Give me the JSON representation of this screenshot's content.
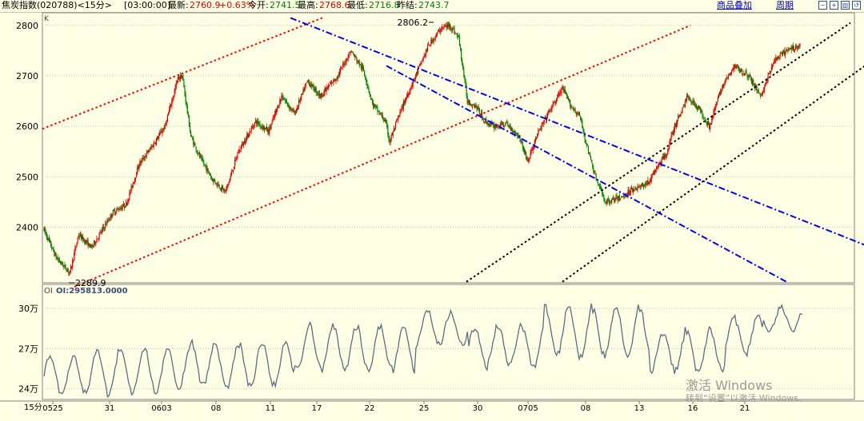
{
  "header": {
    "instrument": "焦炭指数(020788)<15分>",
    "time": "[03:00:00]",
    "last_label": "最新:",
    "last_value": "2760.9",
    "change_value": "+0.63%",
    "open_label": "今开:",
    "open_value": "2741.5",
    "high_label": "最高:",
    "high_value": "2768.6",
    "low_label": "最低:",
    "low_value": "2716.8",
    "prev_label": "昨结:",
    "prev_value": "2743.7",
    "overlay_link": "商品叠加",
    "period_link": "周期",
    "tool_icons": [
      "zoom-out-icon",
      "zoom-in-icon",
      "column-view-icon",
      "restore-icon"
    ]
  },
  "colors": {
    "background": "#FFFFE6",
    "up_candle": "#E00000",
    "down_candle": "#008000",
    "grid": "#C8C8B4",
    "red_channel": "#FF0000",
    "blue_channel": "#0000FF",
    "black_channel": "#000000",
    "oi_line": "#5A6E82"
  },
  "chart_data": [
    {
      "type": "candlestick",
      "panel_label": "K",
      "period": "15分",
      "y_ticks": [
        2400,
        2500,
        2600,
        2700,
        2800
      ],
      "ylim": [
        2290,
        2825
      ],
      "x_tick_labels": [
        "0525",
        "31",
        "0603",
        "08",
        "11",
        "17",
        "22",
        "25",
        "30",
        "0705",
        "08",
        "13",
        "16",
        "21"
      ],
      "annotations": [
        {
          "text": "2806.2",
          "meaning": "high",
          "value": 2806.2
        },
        {
          "text": "2289.9",
          "meaning": "low",
          "value": 2289.9
        }
      ],
      "bar_count": 700,
      "anchors": [
        [
          0,
          2395
        ],
        [
          14,
          2340
        ],
        [
          30,
          2310
        ],
        [
          40,
          2385
        ],
        [
          55,
          2360
        ],
        [
          80,
          2430
        ],
        [
          95,
          2445
        ],
        [
          110,
          2525
        ],
        [
          125,
          2560
        ],
        [
          140,
          2600
        ],
        [
          155,
          2695
        ],
        [
          160,
          2700
        ],
        [
          170,
          2580
        ],
        [
          180,
          2540
        ],
        [
          195,
          2495
        ],
        [
          210,
          2470
        ],
        [
          225,
          2550
        ],
        [
          245,
          2610
        ],
        [
          260,
          2590
        ],
        [
          275,
          2660
        ],
        [
          290,
          2625
        ],
        [
          305,
          2690
        ],
        [
          320,
          2660
        ],
        [
          340,
          2700
        ],
        [
          355,
          2750
        ],
        [
          370,
          2710
        ],
        [
          380,
          2645
        ],
        [
          395,
          2610
        ],
        [
          400,
          2570
        ],
        [
          415,
          2640
        ],
        [
          430,
          2700
        ],
        [
          445,
          2760
        ],
        [
          460,
          2795
        ],
        [
          470,
          2800
        ],
        [
          480,
          2775
        ],
        [
          490,
          2650
        ],
        [
          500,
          2640
        ],
        [
          510,
          2610
        ],
        [
          520,
          2600
        ],
        [
          535,
          2605
        ],
        [
          550,
          2580
        ],
        [
          560,
          2530
        ],
        [
          570,
          2580
        ],
        [
          585,
          2630
        ],
        [
          600,
          2675
        ],
        [
          610,
          2640
        ],
        [
          620,
          2620
        ],
        [
          630,
          2550
        ],
        [
          640,
          2490
        ],
        [
          650,
          2450
        ],
        [
          660,
          2455
        ],
        [
          670,
          2460
        ],
        [
          680,
          2475
        ],
        [
          690,
          2480
        ],
        [
          700,
          2490
        ]
      ],
      "close_last": 2760.9,
      "anchors_tail": [
        [
          710,
          2520
        ],
        [
          720,
          2545
        ],
        [
          730,
          2600
        ],
        [
          745,
          2660
        ],
        [
          760,
          2630
        ],
        [
          770,
          2600
        ],
        [
          785,
          2680
        ],
        [
          800,
          2720
        ],
        [
          815,
          2700
        ],
        [
          830,
          2660
        ],
        [
          845,
          2730
        ],
        [
          860,
          2750
        ],
        [
          875,
          2761
        ]
      ],
      "channels": [
        {
          "color": "red",
          "style": "dotted",
          "from": [
            0,
            2595
          ],
          "to": [
            350,
            2815
          ]
        },
        {
          "color": "red",
          "style": "dotted",
          "from": [
            40,
            2282
          ],
          "to": [
            810,
            2800
          ]
        },
        {
          "color": "blue",
          "style": "dash-dot",
          "from": [
            310,
            2815
          ],
          "to": [
            1068,
            2340
          ]
        },
        {
          "color": "blue",
          "style": "dash-dot",
          "from": [
            430,
            2720
          ],
          "to": [
            930,
            2292
          ]
        },
        {
          "color": "black",
          "style": "dotted",
          "from": [
            530,
            2292
          ],
          "to": [
            1010,
            2805
          ]
        },
        {
          "color": "black",
          "style": "dotted",
          "from": [
            650,
            2292
          ],
          "to": [
            1068,
            2765
          ]
        }
      ]
    },
    {
      "type": "line",
      "panel_label": "OI",
      "indicator_text": "OI:295813.0000",
      "y_ticks": [
        {
          "label": "24万",
          "value": 240000
        },
        {
          "label": "27万",
          "value": 270000
        },
        {
          "label": "30万",
          "value": 300000
        }
      ],
      "ylim": [
        232000,
        318000
      ],
      "last_value": 295813,
      "cycle_period_bars": 13,
      "segments": [
        {
          "x_from": 0,
          "x_to": 60,
          "base": 250000,
          "amplitude": 15000
        },
        {
          "x_from": 60,
          "x_to": 180,
          "base": 253000,
          "amplitude": 18000
        },
        {
          "x_from": 180,
          "x_to": 330,
          "base": 258000,
          "amplitude": 17000
        },
        {
          "x_from": 330,
          "x_to": 490,
          "base": 270000,
          "amplitude": 18000
        },
        {
          "x_from": 490,
          "x_to": 560,
          "base": 285000,
          "amplitude": 14000
        },
        {
          "x_from": 560,
          "x_to": 660,
          "base": 272000,
          "amplitude": 16000
        },
        {
          "x_from": 660,
          "x_to": 800,
          "base": 282000,
          "amplitude": 20000
        },
        {
          "x_from": 800,
          "x_to": 900,
          "base": 268000,
          "amplitude": 17000
        },
        {
          "x_from": 900,
          "x_to": 950,
          "base": 280000,
          "amplitude": 15000
        },
        {
          "x_from": 950,
          "x_to": 1000,
          "base": 292000,
          "amplitude": 9000
        }
      ]
    }
  ],
  "watermark": {
    "line1": "激活 Windows",
    "line2": "转到“设置”以激活 Windows。"
  }
}
